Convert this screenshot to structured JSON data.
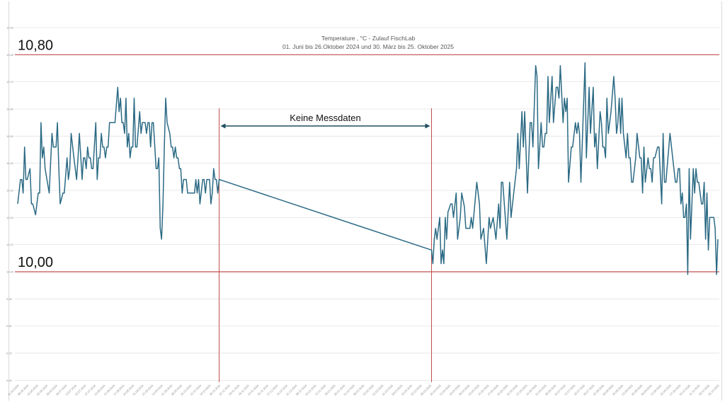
{
  "chart_data": {
    "type": "line",
    "title": "Temperature , °C - Zulauf FischLab",
    "subtitle": "01. Juni bis 26.Oktober 2024 und 30. März bis 25. Oktober 2025",
    "xlabel": "",
    "ylabel": "",
    "ylim": [
      9.6,
      10.9
    ],
    "yticks": [
      "9,60",
      "9,70",
      "9,80",
      "9,90",
      "10,00",
      "10,10",
      "10,20",
      "10,30",
      "10,40",
      "10,50",
      "10,60",
      "10,70",
      "10,80",
      "10,90"
    ],
    "grid": true,
    "x_origin": "01.06.2024",
    "x_unit": "days since origin",
    "x_ticks": [
      "01.06.2024",
      "08.06.2024",
      "15.06.2024",
      "22.06.2024",
      "29.06.2024",
      "06.07.2024",
      "13.07.2024",
      "20.07.2024",
      "27.07.2024",
      "03.08.2024",
      "10.08.2024",
      "17.08.2024",
      "24.08.2024",
      "31.08.2024",
      "07.09.2024",
      "14.09.2024",
      "21.09.2024",
      "28.09.2024",
      "05.10.2024",
      "12.10.2024",
      "19.10.2024",
      "26.10.2024",
      "02.11.2024",
      "09.11.2024",
      "16.11.2024",
      "23.11.2024",
      "30.11.2024",
      "07.12.2024",
      "14.12.2024",
      "21.12.2024",
      "28.12.2024",
      "04.01.2025",
      "11.01.2025",
      "18.01.2025",
      "25.01.2025",
      "01.02.2025",
      "08.02.2025",
      "15.02.2025",
      "22.02.2025",
      "01.03.2025",
      "08.03.2025",
      "15.03.2025",
      "22.03.2025",
      "29.03.2025",
      "05.04.2025",
      "12.04.2025",
      "19.04.2025",
      "26.04.2025",
      "03.05.2025",
      "10.05.2025",
      "17.05.2025",
      "24.05.2025",
      "31.05.2025",
      "07.06.2025",
      "14.06.2025",
      "21.06.2025",
      "28.06.2025",
      "05.07.2025",
      "12.07.2025",
      "19.07.2025",
      "26.07.2025",
      "02.08.2025",
      "09.08.2025",
      "16.08.2025",
      "23.08.2025",
      "30.08.2025",
      "06.09.2025",
      "13.09.2025",
      "20.09.2025",
      "27.09.2025",
      "04.10.2025",
      "11.10.2025",
      "18.10.2025",
      "25.10.2025"
    ],
    "series": [
      {
        "name": "Temperature °C",
        "color": "#2b6a84",
        "points": [
          [
            0,
            10.25
          ],
          [
            2,
            10.34
          ],
          [
            3,
            10.34
          ],
          [
            4,
            10.29
          ],
          [
            5,
            10.46
          ],
          [
            6,
            10.34
          ],
          [
            7,
            10.34
          ],
          [
            9,
            10.38
          ],
          [
            10,
            10.25
          ],
          [
            11,
            10.25
          ],
          [
            13,
            10.21
          ],
          [
            14,
            10.25
          ],
          [
            15,
            10.29
          ],
          [
            16,
            10.29
          ],
          [
            17,
            10.55
          ],
          [
            18,
            10.42
          ],
          [
            19,
            10.46
          ],
          [
            20,
            10.38
          ],
          [
            23,
            10.29
          ],
          [
            25,
            10.51
          ],
          [
            26,
            10.46
          ],
          [
            28,
            10.46
          ],
          [
            29,
            10.55
          ],
          [
            30,
            10.38
          ],
          [
            31,
            10.25
          ],
          [
            33,
            10.29
          ],
          [
            34,
            10.29
          ],
          [
            36,
            10.42
          ],
          [
            37,
            10.34
          ],
          [
            38,
            10.38
          ],
          [
            39,
            10.51
          ],
          [
            41,
            10.42
          ],
          [
            43,
            10.34
          ],
          [
            44,
            10.42
          ],
          [
            45,
            10.51
          ],
          [
            47,
            10.34
          ],
          [
            48,
            10.42
          ],
          [
            49,
            10.42
          ],
          [
            50,
            10.38
          ],
          [
            51,
            10.46
          ],
          [
            52,
            10.42
          ],
          [
            53,
            10.42
          ],
          [
            54,
            10.38
          ],
          [
            55,
            10.38
          ],
          [
            57,
            10.55
          ],
          [
            58,
            10.34
          ],
          [
            59,
            10.42
          ],
          [
            60,
            10.42
          ],
          [
            61,
            10.51
          ],
          [
            62,
            10.46
          ],
          [
            63,
            10.46
          ],
          [
            64,
            10.42
          ],
          [
            65,
            10.46
          ],
          [
            66,
            10.46
          ],
          [
            67,
            10.55
          ],
          [
            71,
            10.55
          ],
          [
            73,
            10.68
          ],
          [
            74,
            10.59
          ],
          [
            75,
            10.64
          ],
          [
            76,
            10.55
          ],
          [
            77,
            10.55
          ],
          [
            78,
            10.51
          ],
          [
            79,
            10.64
          ],
          [
            80,
            10.46
          ],
          [
            81,
            10.51
          ],
          [
            82,
            10.42
          ],
          [
            83,
            10.46
          ],
          [
            84,
            10.46
          ],
          [
            85,
            10.64
          ],
          [
            86,
            10.46
          ],
          [
            87,
            10.46
          ],
          [
            89,
            10.59
          ],
          [
            90,
            10.51
          ],
          [
            91,
            10.55
          ],
          [
            93,
            10.55
          ],
          [
            94,
            10.51
          ],
          [
            95,
            10.55
          ],
          [
            96,
            10.55
          ],
          [
            97,
            10.46
          ],
          [
            98,
            10.55
          ],
          [
            99,
            10.55
          ],
          [
            101,
            10.38
          ],
          [
            102,
            10.38
          ],
          [
            103,
            10.42
          ],
          [
            104,
            10.16
          ],
          [
            105,
            10.12
          ],
          [
            106,
            10.25
          ],
          [
            107,
            10.46
          ],
          [
            108,
            10.64
          ],
          [
            109,
            10.55
          ],
          [
            111,
            10.51
          ],
          [
            112,
            10.46
          ],
          [
            113,
            10.46
          ],
          [
            114,
            10.42
          ],
          [
            115,
            10.46
          ],
          [
            116,
            10.42
          ],
          [
            117,
            10.42
          ],
          [
            118,
            10.38
          ],
          [
            119,
            10.38
          ],
          [
            120,
            10.29
          ],
          [
            121,
            10.34
          ],
          [
            123,
            10.34
          ],
          [
            124,
            10.29
          ],
          [
            129,
            10.29
          ],
          [
            130,
            10.34
          ],
          [
            131,
            10.29
          ],
          [
            132,
            10.34
          ],
          [
            133,
            10.25
          ],
          [
            135,
            10.34
          ],
          [
            136,
            10.34
          ],
          [
            137,
            10.29
          ],
          [
            138,
            10.34
          ],
          [
            140,
            10.34
          ],
          [
            141,
            10.25
          ],
          [
            142,
            10.29
          ],
          [
            143,
            10.38
          ],
          [
            144,
            10.34
          ],
          [
            145,
            10.34
          ],
          [
            146,
            10.29
          ],
          [
            147,
            10.34
          ],
          [
            302,
            10.08
          ],
          [
            303,
            10.03
          ],
          [
            304,
            10.12
          ],
          [
            305,
            10.16
          ],
          [
            306,
            10.12
          ],
          [
            308,
            10.2
          ],
          [
            309,
            10.03
          ],
          [
            310,
            10.08
          ],
          [
            311,
            10.03
          ],
          [
            312,
            10.2
          ],
          [
            313,
            10.12
          ],
          [
            314,
            10.22
          ],
          [
            316,
            10.25
          ],
          [
            317,
            10.25
          ],
          [
            318,
            10.2
          ],
          [
            320,
            10.29
          ],
          [
            321,
            10.12
          ],
          [
            323,
            10.2
          ],
          [
            324,
            10.29
          ],
          [
            326,
            10.24
          ],
          [
            327,
            10.16
          ],
          [
            330,
            10.16
          ],
          [
            331,
            10.2
          ],
          [
            332,
            10.16
          ],
          [
            335,
            10.33
          ],
          [
            337,
            10.25
          ],
          [
            338,
            10.12
          ],
          [
            340,
            10.16
          ],
          [
            342,
            10.03
          ],
          [
            344,
            10.2
          ],
          [
            345,
            10.16
          ],
          [
            347,
            10.2
          ],
          [
            349,
            10.12
          ],
          [
            351,
            10.25
          ],
          [
            352,
            10.16
          ],
          [
            353,
            10.33
          ],
          [
            354,
            10.33
          ],
          [
            357,
            10.12
          ],
          [
            359,
            10.33
          ],
          [
            360,
            10.2
          ],
          [
            362,
            10.29
          ],
          [
            364,
            10.38
          ],
          [
            365,
            10.51
          ],
          [
            366,
            10.38
          ],
          [
            368,
            10.59
          ],
          [
            369,
            10.46
          ],
          [
            370,
            10.59
          ],
          [
            372,
            10.29
          ],
          [
            374,
            10.55
          ],
          [
            375,
            10.55
          ],
          [
            376,
            10.46
          ],
          [
            378,
            10.76
          ],
          [
            379,
            10.72
          ],
          [
            380,
            10.38
          ],
          [
            382,
            10.55
          ],
          [
            383,
            10.46
          ],
          [
            384,
            10.46
          ],
          [
            385,
            10.51
          ],
          [
            386,
            10.51
          ],
          [
            387,
            10.72
          ],
          [
            388,
            10.55
          ],
          [
            390,
            10.72
          ],
          [
            391,
            10.55
          ],
          [
            393,
            10.68
          ],
          [
            394,
            10.68
          ],
          [
            395,
            10.64
          ],
          [
            396,
            10.76
          ],
          [
            398,
            10.55
          ],
          [
            399,
            10.64
          ],
          [
            400,
            10.59
          ],
          [
            401,
            10.64
          ],
          [
            402,
            10.33
          ],
          [
            404,
            10.46
          ],
          [
            405,
            10.46
          ],
          [
            407,
            10.55
          ],
          [
            408,
            10.51
          ],
          [
            409,
            10.55
          ],
          [
            410,
            10.51
          ],
          [
            411,
            10.33
          ],
          [
            414,
            10.77
          ],
          [
            415,
            10.42
          ],
          [
            417,
            10.68
          ],
          [
            418,
            10.51
          ],
          [
            420,
            10.68
          ],
          [
            421,
            10.46
          ],
          [
            422,
            10.51
          ],
          [
            423,
            10.38
          ],
          [
            425,
            10.59
          ],
          [
            426,
            10.55
          ],
          [
            427,
            10.46
          ],
          [
            428,
            10.46
          ],
          [
            429,
            10.42
          ],
          [
            430,
            10.64
          ],
          [
            431,
            10.51
          ],
          [
            433,
            10.59
          ],
          [
            435,
            10.72
          ],
          [
            436,
            10.64
          ],
          [
            437,
            10.51
          ],
          [
            438,
            10.55
          ],
          [
            439,
            10.64
          ],
          [
            440,
            10.51
          ],
          [
            441,
            10.64
          ],
          [
            442,
            10.51
          ],
          [
            444,
            10.42
          ],
          [
            445,
            10.51
          ],
          [
            446,
            10.42
          ],
          [
            447,
            10.42
          ],
          [
            448,
            10.33
          ],
          [
            449,
            10.33
          ],
          [
            451,
            10.42
          ],
          [
            452,
            10.51
          ],
          [
            454,
            10.42
          ],
          [
            455,
            10.42
          ],
          [
            456,
            10.29
          ],
          [
            457,
            10.46
          ],
          [
            458,
            10.33
          ],
          [
            460,
            10.42
          ],
          [
            461,
            10.38
          ],
          [
            462,
            10.38
          ],
          [
            463,
            10.33
          ],
          [
            464,
            10.42
          ],
          [
            465,
            10.42
          ],
          [
            467,
            10.46
          ],
          [
            468,
            10.46
          ],
          [
            470,
            10.25
          ],
          [
            471,
            10.51
          ],
          [
            472,
            10.33
          ],
          [
            473,
            10.33
          ],
          [
            476,
            10.51
          ],
          [
            478,
            10.42
          ],
          [
            480,
            10.33
          ],
          [
            481,
            10.33
          ],
          [
            482,
            10.38
          ],
          [
            483,
            10.38
          ],
          [
            484,
            10.25
          ],
          [
            485,
            10.29
          ],
          [
            486,
            10.2
          ],
          [
            487,
            10.2
          ],
          [
            488,
            10.25
          ],
          [
            489,
            9.99
          ],
          [
            490,
            10.38
          ],
          [
            491,
            10.12
          ],
          [
            493,
            10.38
          ],
          [
            494,
            10.29
          ],
          [
            495,
            10.38
          ],
          [
            496,
            10.33
          ],
          [
            497,
            10.33
          ],
          [
            499,
            10.25
          ],
          [
            500,
            10.25
          ],
          [
            501,
            10.33
          ],
          [
            502,
            10.12
          ],
          [
            503,
            10.29
          ],
          [
            504,
            10.08
          ],
          [
            505,
            10.2
          ],
          [
            508,
            10.2
          ],
          [
            509,
            10.16
          ],
          [
            510,
            9.99
          ],
          [
            511,
            10.12
          ]
        ]
      }
    ],
    "reference_lines": [
      {
        "value": 10.8,
        "label": "10,80",
        "color": "#c0504d"
      },
      {
        "value": 10.0,
        "label": "10,00",
        "color": "#c0504d"
      }
    ],
    "gap_annotation": {
      "label": "Keine Messdaten",
      "from_day": 147,
      "to_day": 302,
      "line_color": "#c0504d",
      "arrow_color": "#1f4e5f"
    },
    "legend": "none"
  }
}
